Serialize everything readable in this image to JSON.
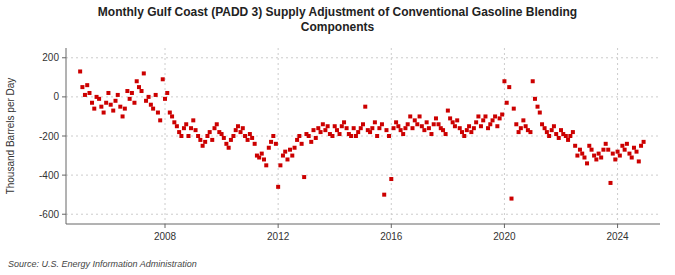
{
  "chart_data": {
    "type": "scatter",
    "title": "Monthly Gulf Coast (PADD 3) Supply Adjustment of Conventional Gasoline Blending\nComponents",
    "ylabel": "Thousand Barrels per Day",
    "source": "Source: U.S. Energy Information Administration",
    "color": "#cc0000",
    "marker": "square",
    "grid": true,
    "xlim": [
      2004.5,
      2025.5
    ],
    "xticks": [
      2008,
      2012,
      2016,
      2020,
      2024
    ],
    "ylim": [
      -650,
      250
    ],
    "yticks": [
      -600,
      -400,
      -200,
      0,
      200
    ],
    "x": [
      2005.0,
      2005.08,
      2005.17,
      2005.25,
      2005.33,
      2005.42,
      2005.5,
      2005.58,
      2005.67,
      2005.75,
      2005.83,
      2005.92,
      2006.0,
      2006.08,
      2006.17,
      2006.25,
      2006.33,
      2006.42,
      2006.5,
      2006.58,
      2006.67,
      2006.75,
      2006.83,
      2006.92,
      2007.0,
      2007.08,
      2007.17,
      2007.25,
      2007.33,
      2007.42,
      2007.5,
      2007.58,
      2007.67,
      2007.75,
      2007.83,
      2007.92,
      2008.0,
      2008.08,
      2008.17,
      2008.25,
      2008.33,
      2008.42,
      2008.5,
      2008.58,
      2008.67,
      2008.75,
      2008.83,
      2008.92,
      2009.0,
      2009.08,
      2009.17,
      2009.25,
      2009.33,
      2009.42,
      2009.5,
      2009.58,
      2009.67,
      2009.75,
      2009.83,
      2009.92,
      2010.0,
      2010.08,
      2010.17,
      2010.25,
      2010.33,
      2010.42,
      2010.5,
      2010.58,
      2010.67,
      2010.75,
      2010.83,
      2010.92,
      2011.0,
      2011.08,
      2011.17,
      2011.25,
      2011.33,
      2011.42,
      2011.5,
      2011.58,
      2011.67,
      2011.75,
      2011.83,
      2011.92,
      2012.0,
      2012.08,
      2012.17,
      2012.25,
      2012.33,
      2012.42,
      2012.5,
      2012.58,
      2012.67,
      2012.75,
      2012.83,
      2012.92,
      2013.0,
      2013.08,
      2013.17,
      2013.25,
      2013.33,
      2013.42,
      2013.5,
      2013.58,
      2013.67,
      2013.75,
      2013.83,
      2013.92,
      2014.0,
      2014.08,
      2014.17,
      2014.25,
      2014.33,
      2014.42,
      2014.5,
      2014.58,
      2014.67,
      2014.75,
      2014.83,
      2014.92,
      2015.0,
      2015.08,
      2015.17,
      2015.25,
      2015.33,
      2015.42,
      2015.5,
      2015.58,
      2015.67,
      2015.75,
      2015.83,
      2015.92,
      2016.0,
      2016.08,
      2016.17,
      2016.25,
      2016.33,
      2016.42,
      2016.5,
      2016.58,
      2016.67,
      2016.75,
      2016.83,
      2016.92,
      2017.0,
      2017.08,
      2017.17,
      2017.25,
      2017.33,
      2017.42,
      2017.5,
      2017.58,
      2017.67,
      2017.75,
      2017.83,
      2017.92,
      2018.0,
      2018.08,
      2018.17,
      2018.25,
      2018.33,
      2018.42,
      2018.5,
      2018.58,
      2018.67,
      2018.75,
      2018.83,
      2018.92,
      2019.0,
      2019.08,
      2019.17,
      2019.25,
      2019.33,
      2019.42,
      2019.5,
      2019.58,
      2019.67,
      2019.75,
      2019.83,
      2019.92,
      2020.0,
      2020.08,
      2020.17,
      2020.25,
      2020.33,
      2020.42,
      2020.5,
      2020.58,
      2020.67,
      2020.75,
      2020.83,
      2020.92,
      2021.0,
      2021.08,
      2021.17,
      2021.25,
      2021.33,
      2021.42,
      2021.5,
      2021.58,
      2021.67,
      2021.75,
      2021.83,
      2021.92,
      2022.0,
      2022.08,
      2022.17,
      2022.25,
      2022.33,
      2022.42,
      2022.5,
      2022.58,
      2022.67,
      2022.75,
      2022.83,
      2022.92,
      2023.0,
      2023.08,
      2023.17,
      2023.25,
      2023.33,
      2023.42,
      2023.5,
      2023.58,
      2023.67,
      2023.75,
      2023.83,
      2023.92,
      2024.0,
      2024.08,
      2024.17,
      2024.25,
      2024.33,
      2024.42,
      2024.5,
      2024.58,
      2024.67,
      2024.75,
      2024.83,
      2024.92
    ],
    "values": [
      130,
      50,
      10,
      60,
      20,
      -30,
      -60,
      0,
      -10,
      -50,
      -80,
      -30,
      20,
      -40,
      -70,
      -20,
      10,
      -50,
      -100,
      -60,
      30,
      -10,
      20,
      -30,
      80,
      50,
      30,
      120,
      -20,
      0,
      -40,
      -60,
      10,
      -80,
      -120,
      90,
      -10,
      20,
      -80,
      -100,
      -130,
      -150,
      -180,
      -200,
      -160,
      -140,
      -200,
      -160,
      -120,
      -170,
      -200,
      -220,
      -250,
      -230,
      -200,
      -180,
      -220,
      -160,
      -140,
      -180,
      -190,
      -210,
      -240,
      -260,
      -220,
      -200,
      -170,
      -150,
      -180,
      -160,
      -200,
      -220,
      -190,
      -210,
      -240,
      -300,
      -310,
      -290,
      -320,
      -350,
      -260,
      -230,
      -200,
      -240,
      -460,
      -350,
      -300,
      -280,
      -320,
      -270,
      -300,
      -260,
      -220,
      -200,
      -240,
      -410,
      -190,
      -200,
      -230,
      -170,
      -210,
      -160,
      -180,
      -140,
      -170,
      -150,
      -190,
      -200,
      -150,
      -170,
      -190,
      -150,
      -130,
      -160,
      -190,
      -200,
      -160,
      -200,
      -180,
      -160,
      -140,
      -50,
      -170,
      -180,
      -160,
      -130,
      -200,
      -160,
      -140,
      -500,
      -170,
      -200,
      -420,
      -160,
      -130,
      -150,
      -170,
      -190,
      -160,
      -140,
      -100,
      -160,
      -120,
      -140,
      -100,
      -150,
      -170,
      -130,
      -160,
      -190,
      -140,
      -110,
      -140,
      -160,
      -170,
      -190,
      -70,
      -110,
      -130,
      -150,
      -120,
      -160,
      -180,
      -200,
      -170,
      -150,
      -180,
      -160,
      -130,
      -100,
      -150,
      -120,
      -100,
      -160,
      -140,
      -120,
      -100,
      -150,
      -110,
      -90,
      80,
      -30,
      50,
      -520,
      -60,
      -140,
      -180,
      -160,
      -120,
      -150,
      -170,
      -180,
      80,
      -10,
      -50,
      -80,
      -140,
      -160,
      -180,
      -200,
      -170,
      -150,
      -190,
      -210,
      -170,
      -190,
      -200,
      -220,
      -200,
      -180,
      -250,
      -300,
      -270,
      -290,
      -310,
      -340,
      -250,
      -270,
      -300,
      -320,
      -290,
      -310,
      -270,
      -240,
      -270,
      -440,
      -290,
      -320,
      -280,
      -300,
      -250,
      -270,
      -240,
      -290,
      -310,
      -260,
      -280,
      -330,
      -250,
      -230
    ]
  }
}
